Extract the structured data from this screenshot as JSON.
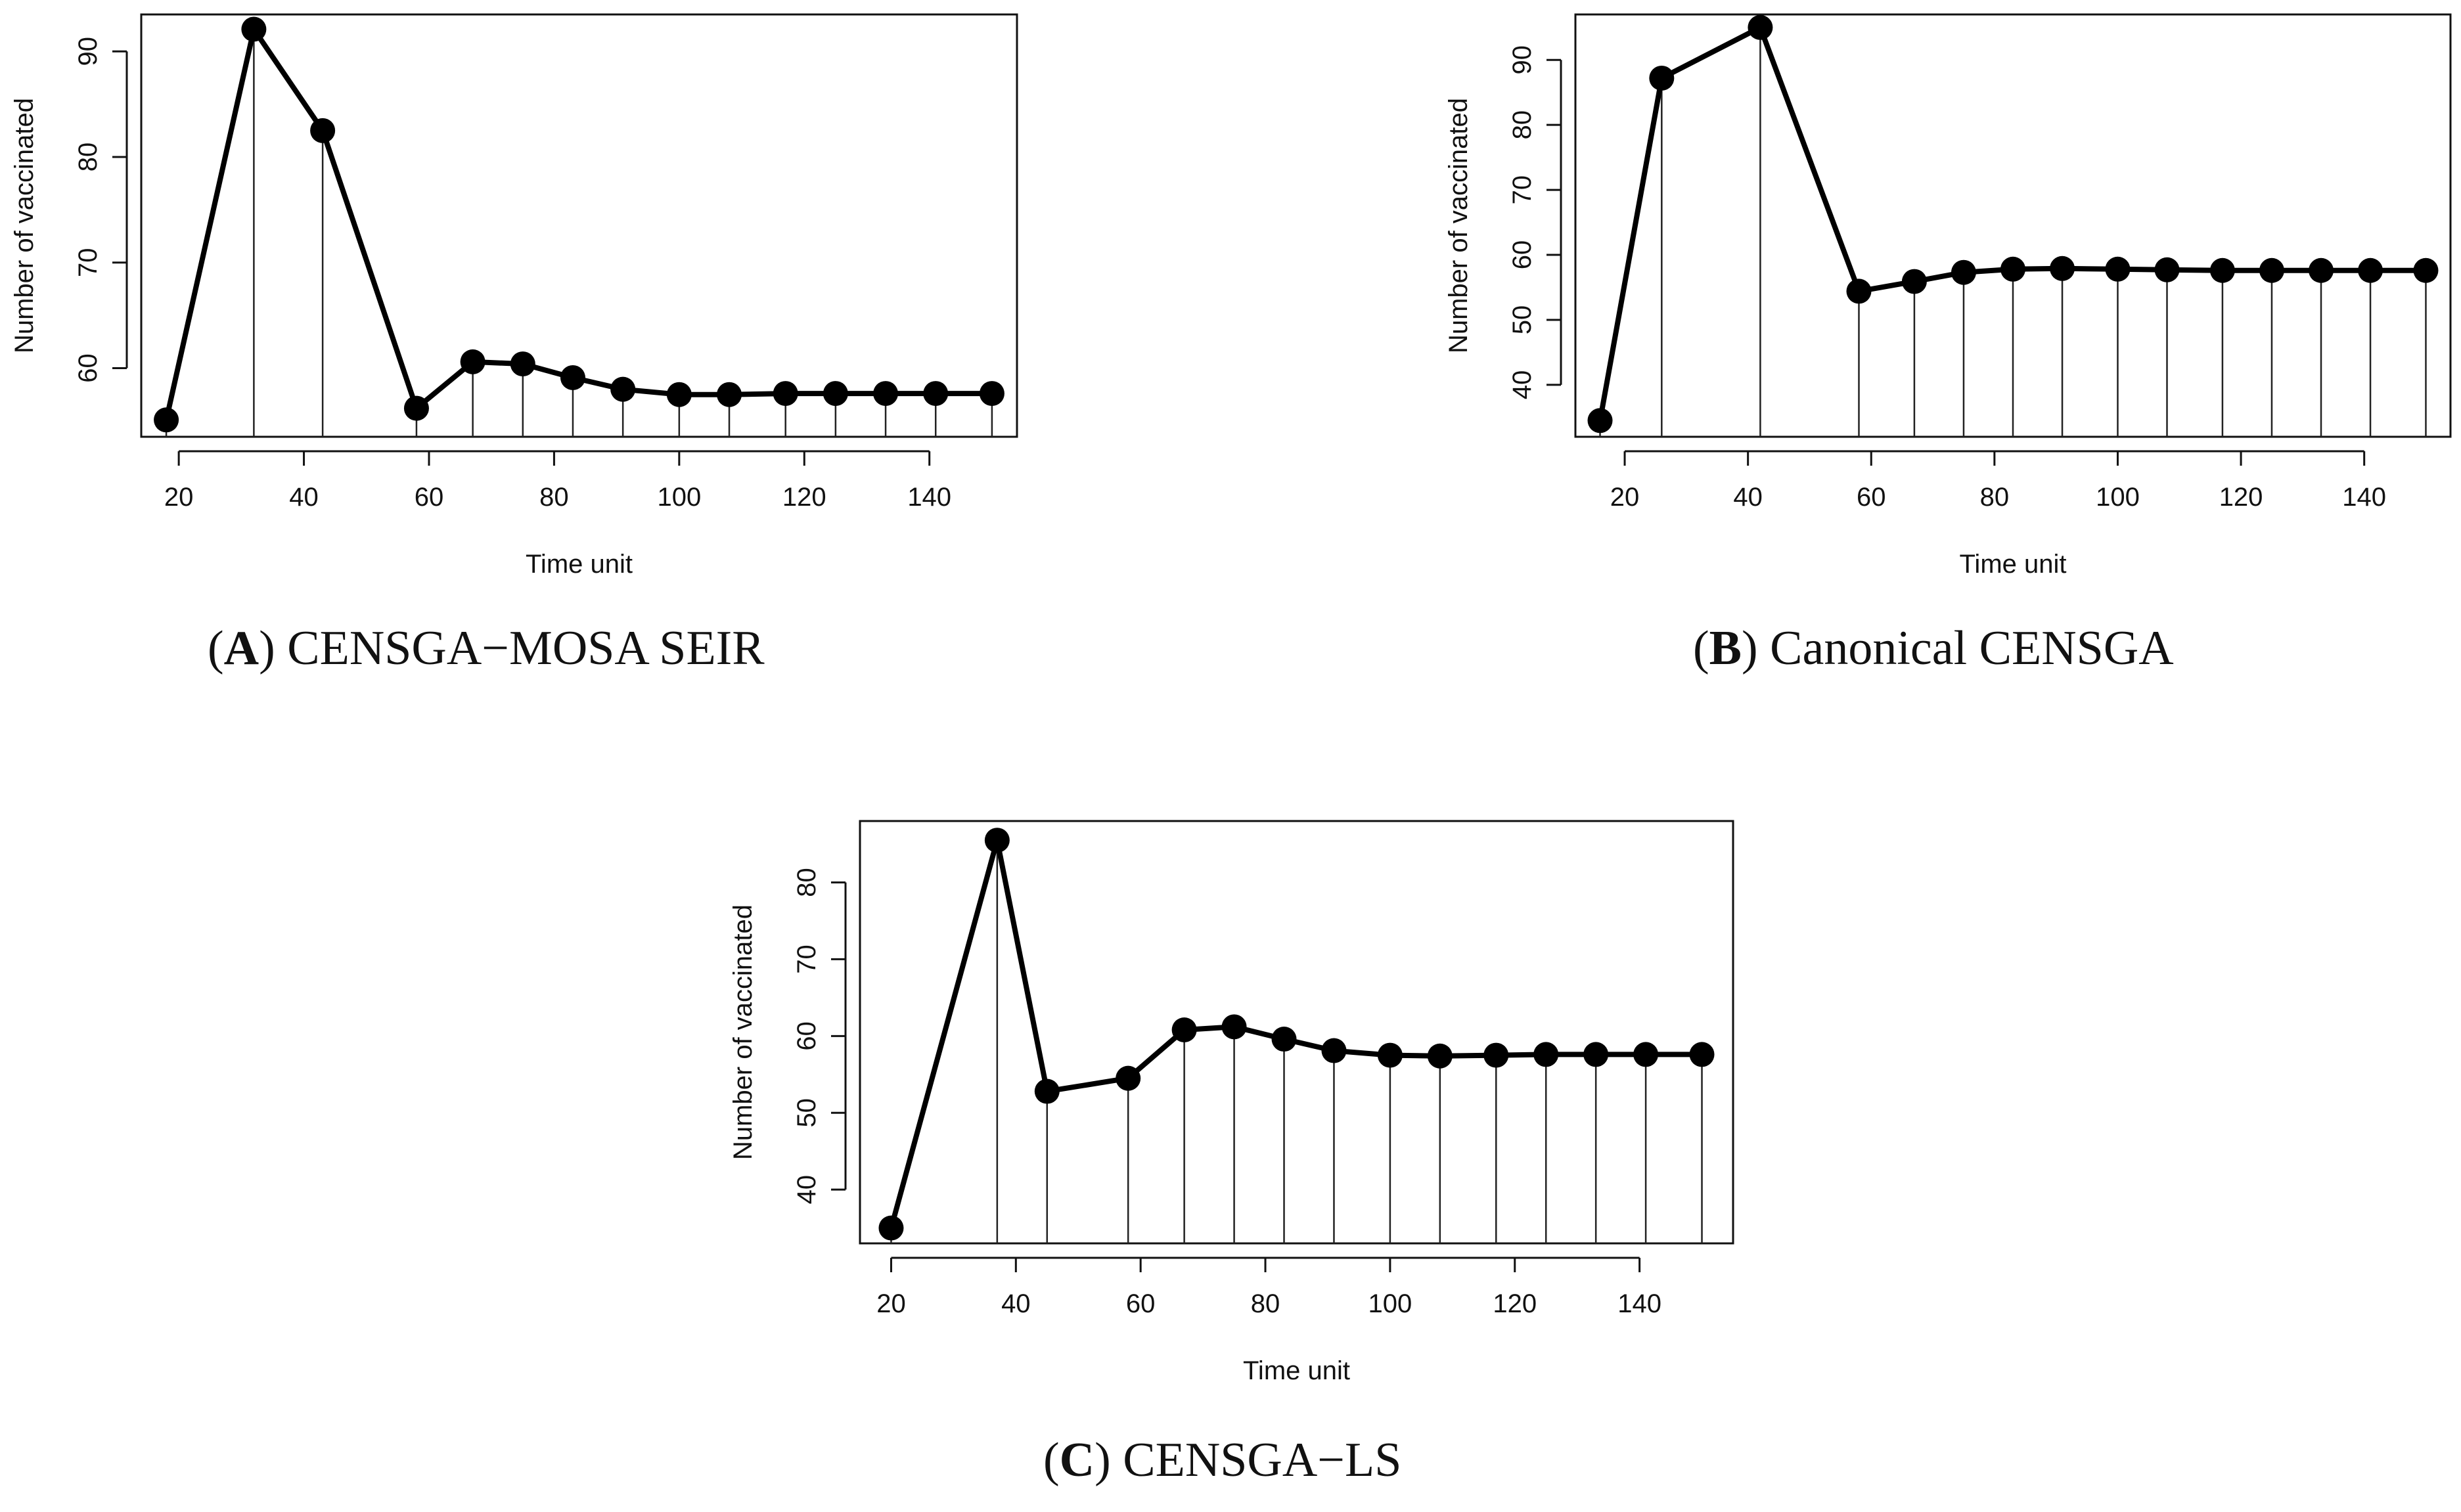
{
  "chart_data": [
    {
      "type": "line",
      "panel": "A",
      "caption_label": "A",
      "caption_text": "CENSGA−MOSA SEIR",
      "xlabel": "Time unit",
      "ylabel": "Number of vaccinated",
      "xlim": [
        14,
        154
      ],
      "ylim": [
        53.5,
        93.5
      ],
      "xticks": [
        20,
        40,
        60,
        80,
        100,
        120,
        140
      ],
      "yticks": [
        60,
        70,
        80,
        90
      ],
      "x": [
        18,
        32,
        43,
        58,
        67,
        75,
        83,
        91,
        100,
        108,
        117,
        125,
        133,
        141,
        150
      ],
      "y": [
        55.1,
        92.1,
        82.5,
        56.2,
        60.6,
        60.4,
        59.1,
        58.0,
        57.5,
        57.5,
        57.6,
        57.6,
        57.6,
        57.6,
        57.6
      ],
      "grid": false
    },
    {
      "type": "line",
      "panel": "B",
      "caption_label": "B",
      "caption_text": "Canonical CENSGA",
      "xlabel": "Time unit",
      "ylabel": "Number of vaccinated",
      "xlim": [
        12,
        154
      ],
      "ylim": [
        32,
        97
      ],
      "xticks": [
        20,
        40,
        60,
        80,
        100,
        120,
        140
      ],
      "yticks": [
        40,
        50,
        60,
        70,
        80,
        90
      ],
      "x": [
        16,
        26,
        42,
        58,
        67,
        75,
        83,
        91,
        100,
        108,
        117,
        125,
        133,
        141,
        150
      ],
      "y": [
        34.5,
        87.2,
        95.0,
        54.4,
        55.9,
        57.3,
        57.8,
        57.9,
        57.8,
        57.7,
        57.6,
        57.6,
        57.6,
        57.6,
        57.6
      ],
      "grid": false
    },
    {
      "type": "line",
      "panel": "C",
      "caption_label": "C",
      "caption_text": "CENSGA−LS",
      "xlabel": "Time unit",
      "ylabel": "Number of vaccinated",
      "xlim": [
        15,
        155
      ],
      "ylim": [
        33,
        88
      ],
      "xticks": [
        20,
        40,
        60,
        80,
        100,
        120,
        140
      ],
      "yticks": [
        40,
        50,
        60,
        70,
        80
      ],
      "x": [
        20,
        37,
        45,
        58,
        67,
        75,
        83,
        91,
        100,
        108,
        117,
        125,
        133,
        141,
        150
      ],
      "y": [
        35.0,
        85.5,
        52.8,
        54.5,
        60.8,
        61.2,
        59.6,
        58.1,
        57.5,
        57.4,
        57.5,
        57.6,
        57.6,
        57.6,
        57.6
      ],
      "grid": false
    }
  ]
}
